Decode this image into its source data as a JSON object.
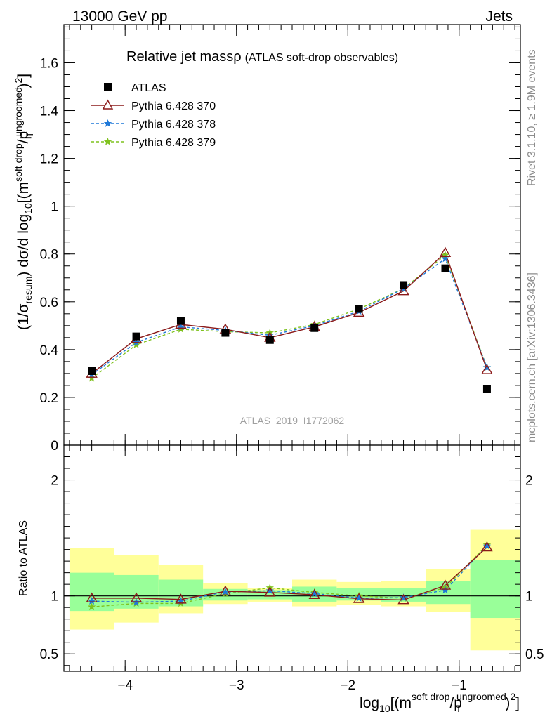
{
  "header": {
    "left": "13000 GeV pp",
    "right": "Jets"
  },
  "side_labels": {
    "rivet": "Rivet 3.1.10, ≥ 1.9M events",
    "mcplots": "mcplots.cern.ch [arXiv:1306.3436]"
  },
  "colors": {
    "atlas": "#000000",
    "p370": "#8b1a1a",
    "p378": "#1e78d8",
    "p379": "#7fc21e",
    "band_green": "#99ff99",
    "band_yellow": "#ffff99"
  },
  "chart_data": [
    {
      "type": "line",
      "panel": "main",
      "title_main": "Relative jet massρ",
      "title_sub": "(ATLAS soft-drop observables)",
      "watermark": "ATLAS_2019_I1772062",
      "ylabel": "(1/σresum) dσ/d log10[(m^soft drop/pT^ungroomed)²]",
      "ylim": [
        0,
        1.76
      ],
      "xlim": [
        -4.55,
        -0.45
      ],
      "yticks": [
        0,
        0.2,
        0.4,
        0.6,
        0.8,
        1,
        1.2,
        1.4,
        1.6
      ],
      "ytick_labels": [
        "0",
        "0.2",
        "0.4",
        "0.6",
        "0.8",
        "1",
        "1.2",
        "1.4",
        "1.6"
      ],
      "x": [
        -4.3,
        -3.9,
        -3.5,
        -3.1,
        -2.7,
        -2.3,
        -1.9,
        -1.5,
        -1.125,
        -0.75
      ],
      "legend_position": "top-left",
      "series": [
        {
          "name": "ATLAS",
          "values": [
            0.31,
            0.455,
            0.52,
            0.47,
            0.44,
            0.49,
            0.57,
            0.67,
            0.74,
            0.235
          ]
        },
        {
          "name": "Pythia 6.428 370",
          "values": [
            0.3,
            0.445,
            0.505,
            0.485,
            0.45,
            0.495,
            0.555,
            0.645,
            0.805,
            0.315
          ]
        },
        {
          "name": "Pythia 6.428 378",
          "values": [
            0.295,
            0.43,
            0.495,
            0.48,
            0.46,
            0.5,
            0.56,
            0.655,
            0.78,
            0.325
          ]
        },
        {
          "name": "Pythia 6.428 379",
          "values": [
            0.28,
            0.42,
            0.485,
            0.475,
            0.47,
            0.505,
            0.57,
            0.655,
            0.795,
            0.325
          ]
        }
      ]
    },
    {
      "type": "line",
      "panel": "ratio",
      "ylabel": "Ratio to ATLAS",
      "ylim": [
        0.35,
        2.3
      ],
      "yticks": [
        0.5,
        1,
        2
      ],
      "ytick_labels": [
        "0.5",
        "1",
        "2"
      ],
      "xlabel": "log10[(m^soft drop/pT^ungroomed)²]",
      "xticks": [
        -4,
        -3,
        -2,
        -1
      ],
      "xtick_labels": [
        "−4",
        "−3",
        "−2",
        "−1"
      ],
      "bins": [
        [
          -4.5,
          -4.1
        ],
        [
          -4.1,
          -3.7
        ],
        [
          -3.7,
          -3.3
        ],
        [
          -3.3,
          -2.9
        ],
        [
          -2.9,
          -2.5
        ],
        [
          -2.5,
          -2.1
        ],
        [
          -2.1,
          -1.7
        ],
        [
          -1.7,
          -1.3
        ],
        [
          -1.3,
          -0.9
        ],
        [
          -0.9,
          -0.45
        ]
      ],
      "band_inner": [
        [
          0.87,
          1.2
        ],
        [
          0.89,
          1.18
        ],
        [
          0.91,
          1.14
        ],
        [
          0.96,
          1.06
        ],
        [
          0.97,
          1.05
        ],
        [
          0.95,
          1.08
        ],
        [
          0.96,
          1.07
        ],
        [
          0.95,
          1.07
        ],
        [
          0.93,
          1.13
        ],
        [
          0.81,
          1.31
        ]
      ],
      "band_outer": [
        [
          0.71,
          1.41
        ],
        [
          0.77,
          1.35
        ],
        [
          0.85,
          1.27
        ],
        [
          0.93,
          1.11
        ],
        [
          0.95,
          1.07
        ],
        [
          0.91,
          1.14
        ],
        [
          0.92,
          1.12
        ],
        [
          0.91,
          1.13
        ],
        [
          0.86,
          1.23
        ],
        [
          0.53,
          1.57
        ]
      ],
      "x": [
        -4.3,
        -3.9,
        -3.5,
        -3.1,
        -2.7,
        -2.3,
        -1.9,
        -1.5,
        -1.125,
        -0.75
      ],
      "series": [
        {
          "name": "Pythia 6.428 370",
          "values": [
            0.98,
            0.98,
            0.97,
            1.04,
            1.03,
            1.01,
            0.975,
            0.965,
            1.09,
            1.42
          ]
        },
        {
          "name": "Pythia 6.428 378",
          "values": [
            0.955,
            0.945,
            0.955,
            1.035,
            1.045,
            1.02,
            0.98,
            0.985,
            1.05,
            1.43
          ]
        },
        {
          "name": "Pythia 6.428 379",
          "values": [
            0.905,
            0.935,
            0.935,
            1.02,
            1.07,
            1.03,
            1.0,
            0.98,
            1.07,
            1.44
          ]
        }
      ]
    }
  ]
}
